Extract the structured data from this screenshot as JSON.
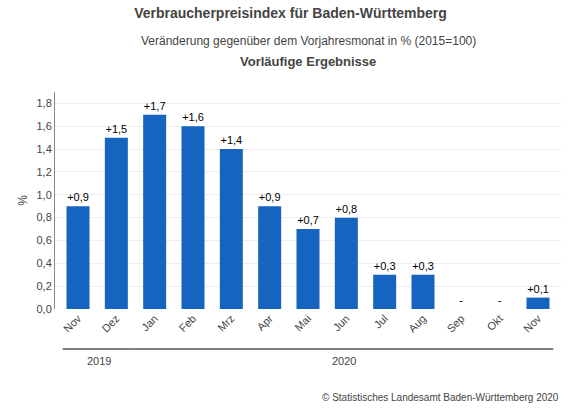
{
  "chart_data": {
    "type": "bar",
    "title": "Verbraucherpreisindex für Baden-Württemberg",
    "subtitle": "Veränderung gegenüber dem Vorjahresmonat in % (2015=100)",
    "annotations": [
      "Vorläufige Ergebnisse",
      "2019",
      "2020",
      "© Statistisches Landesamt Baden-Württemberg 2020"
    ],
    "ylabel": "%",
    "categories": [
      "Nov",
      "Dez",
      "Jan",
      "Feb",
      "Mrz",
      "Apr",
      "Mai",
      "Jun",
      "Jul",
      "Aug",
      "Sep",
      "Okt",
      "Nov"
    ],
    "values": [
      0.9,
      1.5,
      1.7,
      1.6,
      1.4,
      0.9,
      0.7,
      0.8,
      0.3,
      0.3,
      0.0,
      0.0,
      0.1
    ],
    "value_labels": [
      "+0,9",
      "+1,5",
      "+1,7",
      "+1,6",
      "+1,4",
      "+0,9",
      "+0,7",
      "+0,8",
      "+0,3",
      "+0,3",
      "-",
      "-",
      "+0,1"
    ],
    "data_labels": true,
    "color": "#1565c0",
    "ylim": [
      0,
      1.9
    ],
    "yticks": [
      {
        "value": 0.0,
        "label": "0,0"
      },
      {
        "value": 0.2,
        "label": "0,2"
      },
      {
        "value": 0.4,
        "label": "0,4"
      },
      {
        "value": 0.6,
        "label": "0,6"
      },
      {
        "value": 0.8,
        "label": "0,8"
      },
      {
        "value": 1.0,
        "label": "1,0"
      },
      {
        "value": 1.2,
        "label": "1,2"
      },
      {
        "value": 1.4,
        "label": "1,4"
      },
      {
        "value": 1.6,
        "label": "1,6"
      },
      {
        "value": 1.8,
        "label": "1,8"
      }
    ],
    "grid": true
  }
}
